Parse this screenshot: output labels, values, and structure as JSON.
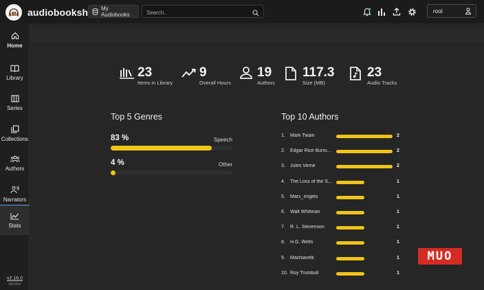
{
  "app": {
    "title": "audiobookshelf"
  },
  "header": {
    "library_label": "My Audiobooks",
    "search_placeholder": "Search..",
    "user_name": "root"
  },
  "sidebar": {
    "items": [
      {
        "label": "Home",
        "icon": "home-icon"
      },
      {
        "label": "Library",
        "icon": "book-open-icon"
      },
      {
        "label": "Series",
        "icon": "columns-icon"
      },
      {
        "label": "Collections",
        "icon": "stack-icon"
      },
      {
        "label": "Authors",
        "icon": "users-icon"
      },
      {
        "label": "Narrators",
        "icon": "microphone-icon"
      },
      {
        "label": "Stats",
        "icon": "chart-line-icon",
        "active": true
      }
    ],
    "version": "v2.16.0",
    "build": "docker"
  },
  "stats": [
    {
      "value": "23",
      "label": "Items in Library",
      "icon": "library-bars-icon"
    },
    {
      "value": "9",
      "label": "Overall Hours",
      "icon": "trend-line-icon"
    },
    {
      "value": "19",
      "label": "Authors",
      "icon": "person-icon"
    },
    {
      "value": "117.3",
      "label": "Size (MB)",
      "icon": "file-icon"
    },
    {
      "value": "23",
      "label": "Audio Tracks",
      "icon": "audio-file-icon"
    }
  ],
  "genres": {
    "title": "Top 5 Genres",
    "items": [
      {
        "percent": "83 %",
        "name": "Speech",
        "fraction": 0.83
      },
      {
        "percent": "4 %",
        "name": "Other",
        "fraction": 0.04
      }
    ]
  },
  "authors": {
    "title": "Top 10 Authors",
    "items": [
      {
        "rank": "1.",
        "name": "Mark Twain",
        "count": "2"
      },
      {
        "rank": "2.",
        "name": "Edgar Rice Burro...",
        "count": "2"
      },
      {
        "rank": "3.",
        "name": "Jules Verne",
        "count": "2"
      },
      {
        "rank": "4.",
        "name": "The Loss of the S...",
        "count": "1"
      },
      {
        "rank": "5.",
        "name": "Marx_engels",
        "count": "1"
      },
      {
        "rank": "6.",
        "name": "Walt Whitman",
        "count": "1"
      },
      {
        "rank": "7.",
        "name": "R. L. Stevenson",
        "count": "1"
      },
      {
        "rank": "8.",
        "name": "H.G. Wells",
        "count": "1"
      },
      {
        "rank": "9.",
        "name": "Machiavelli",
        "count": "1"
      },
      {
        "rank": "10.",
        "name": "Roy Trumbull",
        "count": "1"
      }
    ]
  },
  "watermark": "MUO",
  "colors": {
    "accent": "#f0c419",
    "active_border": "#6a9ae0",
    "watermark_bg": "#d42b24"
  }
}
